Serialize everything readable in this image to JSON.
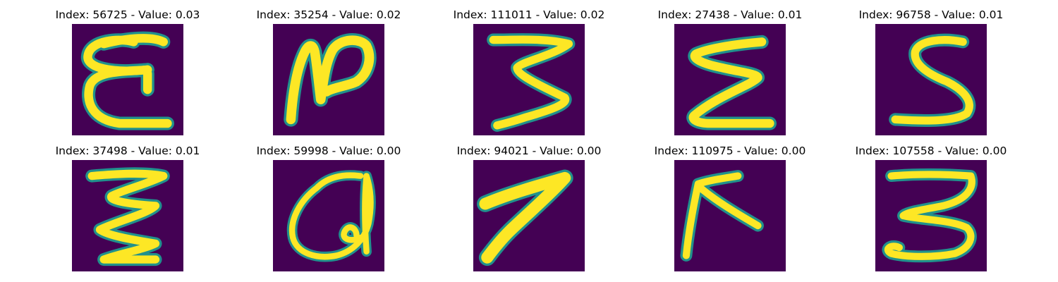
{
  "figure": {
    "colormap": {
      "background": "#440154",
      "mid": "#21918c",
      "light": "#5ec962",
      "high": "#fde725"
    },
    "panels": [
      {
        "title": "Index: 56725 - Value: 0.03"
      },
      {
        "title": "Index: 35254 - Value: 0.02"
      },
      {
        "title": "Index: 111011 - Value: 0.02"
      },
      {
        "title": "Index: 27438 - Value: 0.01"
      },
      {
        "title": "Index: 96758 - Value: 0.01"
      },
      {
        "title": "Index: 37498 - Value: 0.01"
      },
      {
        "title": "Index: 59998 - Value: 0.00"
      },
      {
        "title": "Index: 94021 - Value: 0.00"
      },
      {
        "title": "Index: 110975 - Value: 0.00"
      },
      {
        "title": "Index: 107558 - Value: 0.00"
      }
    ]
  }
}
